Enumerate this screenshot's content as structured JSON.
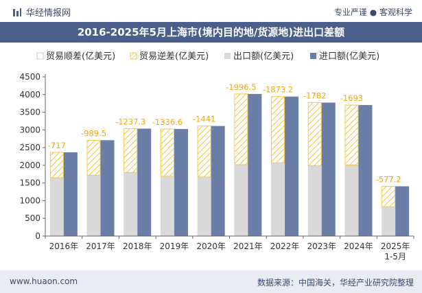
{
  "header": {
    "brand": "华经情报网",
    "tagline": "专业严谨 ● 客观科学",
    "logo_icon": "bar-logo-icon"
  },
  "title": "2016-2025年5月上海市(境内目的地/货源地)进出口差额",
  "footer": {
    "url": "www.huaon.com",
    "source": "数据来源：中国海关，华经产业研究院整理"
  },
  "colors": {
    "header_bar": "#4a5f8c",
    "export_bar": "#d9d9d9",
    "import_bar": "#6b7ea8",
    "deficit_hatch": "#f2c94c",
    "label_color": "#f2a900"
  },
  "chart_data": {
    "type": "bar",
    "legend_position": "top",
    "categories": [
      "2016年",
      "2017年",
      "2018年",
      "2019年",
      "2020年",
      "2021年",
      "2022年",
      "2023年",
      "2024年",
      "2025年\n1-5月"
    ],
    "series": [
      {
        "name": "贸易顺差(亿美元)",
        "values": [
          0,
          0,
          0,
          0,
          0,
          0,
          0,
          0,
          0,
          0
        ]
      },
      {
        "name": "贸易逆差(亿美元)",
        "values": [
          -717,
          -989.5,
          -1237.3,
          -1336.6,
          -1441,
          -1996.5,
          -1873.2,
          -1782,
          -1693,
          -577.2
        ]
      },
      {
        "name": "出口额(亿美元)",
        "values": [
          1650,
          1720,
          1800,
          1690,
          1670,
          2020,
          2070,
          1990,
          2010,
          830
        ]
      },
      {
        "name": "进口额(亿美元)",
        "values": [
          2367,
          2710,
          3037,
          3027,
          3111,
          4017,
          3943,
          3772,
          3703,
          1407
        ]
      }
    ],
    "data_labels": [
      "-717",
      "-989.5",
      "-1237.3",
      "-1336.6",
      "-1441",
      "-1996.5",
      "-1873.2",
      "-1782",
      "-1693",
      "-577.2"
    ],
    "ylim": [
      0,
      4500
    ],
    "yticks": [
      0,
      500,
      1000,
      1500,
      2000,
      2500,
      3000,
      3500,
      4000,
      4500
    ],
    "grid": false
  }
}
